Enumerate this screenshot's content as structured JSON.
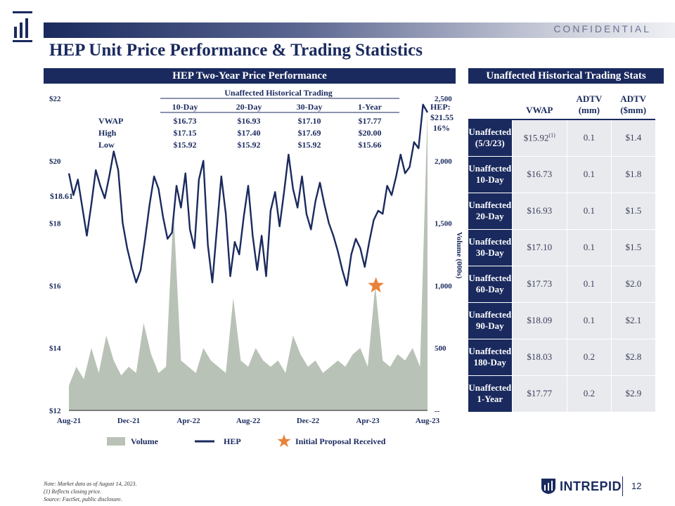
{
  "header": {
    "confidential": "CONFIDENTIAL",
    "title": "HEP Unit Price Performance & Trading Statistics",
    "page_number": "12",
    "brand": "INTREPID"
  },
  "left_section": {
    "title": "HEP Two-Year Price Performance"
  },
  "right_section": {
    "title": "Unaffected Historical Trading Stats"
  },
  "inset_table": {
    "title": "Unaffected Historical Trading",
    "columns": [
      "10-Day",
      "20-Day",
      "30-Day",
      "1-Year"
    ],
    "rows": [
      {
        "label": "VWAP",
        "values": [
          "$16.73",
          "$16.93",
          "$17.10",
          "$17.77"
        ]
      },
      {
        "label": "High",
        "values": [
          "$17.15",
          "$17.40",
          "$17.69",
          "$20.00"
        ]
      },
      {
        "label": "Low",
        "values": [
          "$15.92",
          "$15.92",
          "$15.92",
          "$15.66"
        ]
      }
    ]
  },
  "annotations": {
    "current_price_label": "HEP:",
    "current_price": "$21.55",
    "premium": "16%",
    "unaffected_marker": "$18.61"
  },
  "legend": {
    "volume": "Volume",
    "hep": "HEP",
    "proposal": "Initial Proposal Received"
  },
  "stats_table": {
    "headers": [
      "",
      "VWAP",
      "ADTV\n(mm)",
      "ADTV\n($mm)"
    ],
    "rows": [
      {
        "label": [
          "Unaffected",
          "(5/3/23)"
        ],
        "vwap": "$15.92",
        "vwap_note": "(1)",
        "adtv_mm": "0.1",
        "adtv_usd": "$1.4"
      },
      {
        "label": [
          "Unaffected",
          "10-Day"
        ],
        "vwap": "$16.73",
        "vwap_note": "",
        "adtv_mm": "0.1",
        "adtv_usd": "$1.8"
      },
      {
        "label": [
          "Unaffected",
          "20-Day"
        ],
        "vwap": "$16.93",
        "vwap_note": "",
        "adtv_mm": "0.1",
        "adtv_usd": "$1.5"
      },
      {
        "label": [
          "Unaffected",
          "30-Day"
        ],
        "vwap": "$17.10",
        "vwap_note": "",
        "adtv_mm": "0.1",
        "adtv_usd": "$1.5"
      },
      {
        "label": [
          "Unaffected",
          "60-Day"
        ],
        "vwap": "$17.73",
        "vwap_note": "",
        "adtv_mm": "0.1",
        "adtv_usd": "$2.0"
      },
      {
        "label": [
          "Unaffected",
          "90-Day"
        ],
        "vwap": "$18.09",
        "vwap_note": "",
        "adtv_mm": "0.1",
        "adtv_usd": "$2.1"
      },
      {
        "label": [
          "Unaffected",
          "180-Day"
        ],
        "vwap": "$18.03",
        "vwap_note": "",
        "adtv_mm": "0.2",
        "adtv_usd": "$2.8"
      },
      {
        "label": [
          "Unaffected",
          "1-Year"
        ],
        "vwap": "$17.77",
        "vwap_note": "",
        "adtv_mm": "0.2",
        "adtv_usd": "$2.9"
      }
    ]
  },
  "notes": [
    "Note: Market data as of August 14, 2023.",
    "(1)       Reflects closing price.",
    "Source: FactSet, public disclosure."
  ],
  "colors": {
    "navy": "#1a2a5e",
    "volume": "#b9c2b6",
    "star": "#e8823a"
  },
  "chart_data": {
    "type": "line",
    "title": "",
    "xlabel": "",
    "ylabel": "",
    "y2label": "Volume (000s)",
    "x_tick_labels": [
      "Aug-21",
      "Dec-21",
      "Apr-22",
      "Aug-22",
      "Dec-22",
      "Apr-23",
      "Aug-23"
    ],
    "x_range": [
      0,
      24
    ],
    "ylim": [
      12,
      22
    ],
    "y_tick_labels": [
      "$12",
      "$14",
      "$16",
      "$18",
      "$20",
      "$22"
    ],
    "y2lim": [
      0,
      2500
    ],
    "y2_tick_labels": [
      "--",
      "500",
      "1,000",
      "1,500",
      "2,000",
      "2,500"
    ],
    "grid": false,
    "legend_position": "bottom",
    "series": [
      {
        "name": "HEP",
        "x": [
          0,
          0.3,
          0.6,
          0.9,
          1.2,
          1.5,
          1.8,
          2.1,
          2.4,
          2.7,
          3.0,
          3.3,
          3.6,
          3.9,
          4.2,
          4.5,
          4.8,
          5.1,
          5.4,
          5.7,
          6.0,
          6.3,
          6.6,
          6.9,
          7.2,
          7.5,
          7.8,
          8.1,
          8.4,
          8.7,
          9.0,
          9.3,
          9.6,
          9.9,
          10.2,
          10.5,
          10.8,
          11.1,
          11.4,
          11.7,
          12.0,
          12.3,
          12.6,
          12.9,
          13.2,
          13.5,
          13.8,
          14.1,
          14.4,
          14.7,
          15.0,
          15.3,
          15.6,
          15.9,
          16.2,
          16.5,
          16.8,
          17.1,
          17.4,
          17.7,
          18.0,
          18.3,
          18.6,
          18.9,
          19.2,
          19.5,
          19.8,
          20.1,
          20.4,
          20.7,
          21.0,
          21.3,
          21.6,
          21.9,
          22.2,
          22.5,
          22.8,
          23.1,
          23.4,
          23.7,
          24.0
        ],
        "values": [
          19.6,
          18.9,
          19.4,
          18.5,
          17.6,
          18.6,
          19.7,
          19.2,
          18.8,
          19.5,
          20.3,
          19.7,
          18.0,
          17.2,
          16.6,
          16.1,
          16.5,
          17.5,
          18.6,
          19.5,
          19.1,
          18.2,
          17.5,
          17.7,
          19.2,
          18.5,
          19.6,
          17.8,
          17.2,
          19.4,
          20.0,
          17.3,
          16.1,
          17.8,
          19.5,
          18.3,
          16.3,
          17.4,
          17.0,
          18.2,
          19.2,
          17.6,
          16.5,
          17.6,
          16.3,
          18.4,
          19.0,
          17.9,
          19.0,
          20.2,
          19.1,
          18.5,
          19.5,
          18.3,
          17.8,
          18.7,
          19.3,
          18.6,
          18.0,
          17.6,
          17.1,
          16.5,
          16.0,
          17.0,
          17.5,
          17.2,
          16.6,
          17.4,
          18.1,
          18.4,
          18.3,
          19.2,
          18.9,
          19.5,
          20.2,
          19.6,
          19.8,
          20.6,
          20.4,
          21.8,
          21.55
        ]
      },
      {
        "name": "Volume",
        "axis": "y2",
        "x": [
          0,
          0.5,
          1,
          1.5,
          2,
          2.5,
          3,
          3.5,
          4,
          4.5,
          5,
          5.5,
          6,
          6.5,
          7,
          7.5,
          8,
          8.5,
          9,
          9.5,
          10,
          10.5,
          11,
          11.5,
          12,
          12.5,
          13,
          13.5,
          14,
          14.5,
          15,
          15.5,
          16,
          16.5,
          17,
          17.5,
          18,
          18.5,
          19,
          19.5,
          20,
          20.5,
          21,
          21.5,
          22,
          22.5,
          23,
          23.5,
          24
        ],
        "values": [
          200,
          350,
          250,
          500,
          300,
          600,
          400,
          280,
          350,
          300,
          700,
          450,
          300,
          350,
          1600,
          400,
          350,
          300,
          500,
          400,
          350,
          300,
          900,
          400,
          350,
          500,
          400,
          350,
          400,
          300,
          600,
          450,
          350,
          400,
          300,
          350,
          400,
          350,
          450,
          500,
          350,
          1000,
          400,
          350,
          450,
          400,
          500,
          350,
          2400
        ]
      }
    ],
    "markers": [
      {
        "name": "Initial Proposal Received",
        "x": 20.55,
        "value": 16.0
      }
    ]
  }
}
